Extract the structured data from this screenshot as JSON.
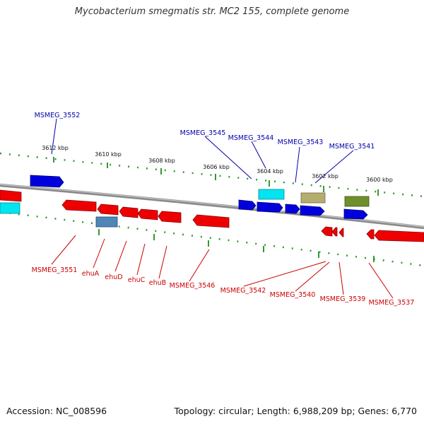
{
  "title": "Mycobacterium smegmatis str. MC2 155, complete genome",
  "footer": {
    "accession": "Accession: NC_008596",
    "summary": "Topology: circular; Length: 6,988,209 bp; Genes: 6,770"
  },
  "scale_labels": [
    "3612 kbp",
    "3610 kbp",
    "3608 kbp",
    "3606 kbp",
    "3604 kbp",
    "3602 kbp",
    "3600 kbp"
  ],
  "gene_labels_top": [
    "MSMEG_3552",
    "MSMEG_3545",
    "MSMEG_3544",
    "MSMEG_3543",
    "MSMEG_3541"
  ],
  "gene_labels_bottom": [
    "MSMEG_3551",
    "ehuA",
    "ehuD",
    "ehuC",
    "ehuB",
    "MSMEG_3546",
    "MSMEG_3542",
    "MSMEG_3540",
    "MSMEG_3539",
    "MSMEG_3537"
  ],
  "colors": {
    "forward_label": "#0000aa",
    "reverse_label": "#cc0000",
    "backbone": "#8a8a8a",
    "ticks": "#339933"
  }
}
